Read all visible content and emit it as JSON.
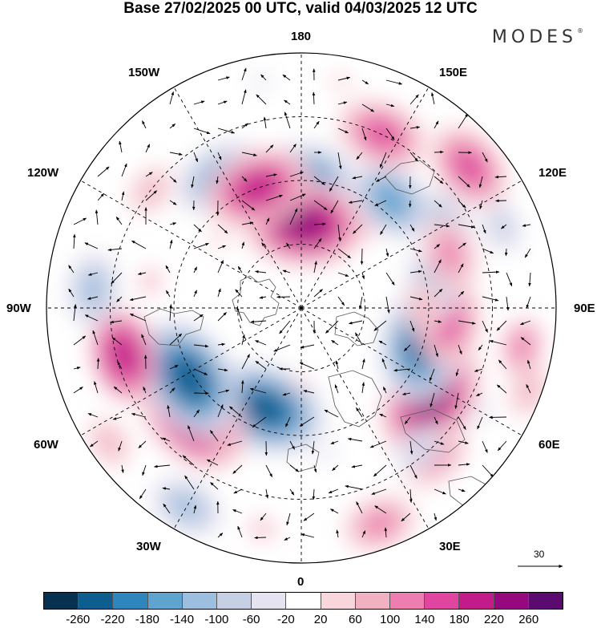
{
  "title": "Base 27/02/2025 00 UTC, valid 04/03/2025 12 UTC",
  "brand": "MODES",
  "brand_mark": "®",
  "longitude_labels": {
    "top": "180",
    "bottom": "0",
    "left": "90W",
    "right": "90E",
    "upper_left_1": "150W",
    "upper_left_2": "120W",
    "lower_left_1": "60W",
    "lower_left_2": "30W",
    "upper_right_1": "150E",
    "upper_right_2": "120E",
    "lower_right_1": "60E",
    "lower_right_2": "30E"
  },
  "reference_vector_label": "30",
  "colorbar": {
    "colors": [
      "#08304f",
      "#0e5d8f",
      "#2f86bd",
      "#5fa3cf",
      "#9cbfdf",
      "#c7cfe5",
      "#e6e3f0",
      "#ffffff",
      "#f8d6db",
      "#f2b1c2",
      "#ec7fb0",
      "#e0469f",
      "#c21b8a",
      "#96087e",
      "#5b0a70"
    ],
    "tick_labels": [
      "-260",
      "-220",
      "-180",
      "-140",
      "-100",
      "-60",
      "-20",
      "20",
      "60",
      "100",
      "140",
      "180",
      "220",
      "260"
    ]
  },
  "anomaly_blobs": [
    {
      "lon": 55,
      "r": 0.62,
      "val": 240
    },
    {
      "lon": 42,
      "r": 0.78,
      "val": 120
    },
    {
      "lon": 75,
      "r": 0.5,
      "val": -230
    },
    {
      "lon": 85,
      "r": 0.58,
      "val": 150
    },
    {
      "lon": 100,
      "r": 0.52,
      "val": -120
    },
    {
      "lon": 160,
      "r": 0.42,
      "val": 180
    },
    {
      "lon": 180,
      "r": 0.5,
      "val": -200
    },
    {
      "lon": 178,
      "r": 0.33,
      "val": 240
    },
    {
      "lon": 140,
      "r": 0.55,
      "val": -180
    },
    {
      "lon": 155,
      "r": 0.75,
      "val": 150
    },
    {
      "lon": 130,
      "r": 0.86,
      "val": 170
    },
    {
      "lon": 112,
      "r": 0.85,
      "val": -100
    },
    {
      "lon": 120,
      "r": 0.65,
      "val": -120
    },
    {
      "lon": 80,
      "r": 0.88,
      "val": 100
    },
    {
      "lon": 70,
      "r": 0.95,
      "val": 80
    },
    {
      "lon": 20,
      "r": 0.9,
      "val": 130
    },
    {
      "lon": 40,
      "r": 0.72,
      "val": -90
    },
    {
      "lon": 110,
      "r": 0.62,
      "val": 120
    },
    {
      "lon": 90,
      "r": 0.48,
      "val": 90
    },
    {
      "lon": 60,
      "r": 0.82,
      "val": -60
    },
    {
      "lon": -10,
      "r": 0.88,
      "val": 60
    },
    {
      "lon": 10,
      "r": 0.58,
      "val": -40
    },
    {
      "lon": -20,
      "r": 0.42,
      "val": -240
    },
    {
      "lon": -45,
      "r": 0.6,
      "val": 240
    },
    {
      "lon": -58,
      "r": 0.52,
      "val": -260
    },
    {
      "lon": -75,
      "r": 0.72,
      "val": 180
    },
    {
      "lon": -95,
      "r": 0.82,
      "val": -120
    },
    {
      "lon": -128,
      "r": 0.75,
      "val": 80
    },
    {
      "lon": -148,
      "r": 0.6,
      "val": -150
    },
    {
      "lon": -160,
      "r": 0.5,
      "val": 210
    },
    {
      "lon": -30,
      "r": 0.9,
      "val": -120
    },
    {
      "lon": -55,
      "r": 0.92,
      "val": 90
    },
    {
      "lon": -100,
      "r": 0.6,
      "val": 60
    },
    {
      "lon": -130,
      "r": 0.42,
      "val": 50
    },
    {
      "lon": -30,
      "r": 0.62,
      "val": 60
    },
    {
      "lon": 0,
      "r": 0.3,
      "val": 30
    },
    {
      "lon": -170,
      "r": 0.9,
      "val": -40
    },
    {
      "lon": 170,
      "r": 0.9,
      "val": 50
    }
  ]
}
